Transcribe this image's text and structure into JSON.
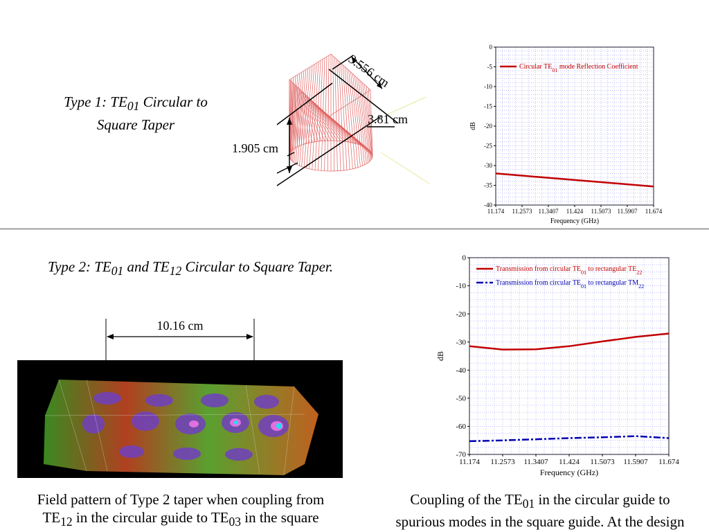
{
  "type1": {
    "title_pre": "Type 1: TE",
    "title_sub": "01",
    "title_post": " Circular to",
    "title_line2": "Square Taper",
    "dim_top": "3.556 cm",
    "dim_width": "3.81 cm",
    "dim_height": "1.905 cm"
  },
  "type2": {
    "title_a": "Type 2: TE",
    "title_sub1": "01",
    "title_b": " and TE",
    "title_sub2": "12",
    "title_c": " Circular to Square Taper.",
    "dim_length": "10.16 cm"
  },
  "caption_left": {
    "l1": "Field pattern of Type 2 taper when coupling from",
    "l2a": "TE",
    "l2sub1": "12",
    "l2b": " in the circular guide to TE",
    "l2sub2": "03",
    "l2c": " in the square"
  },
  "caption_right": {
    "l1a": "Coupling of the TE",
    "l1sub": "01",
    "l1b": " in the circular guide to",
    "l2": "spurious modes in the square guide. At the design"
  },
  "colors": {
    "red": "#c00000",
    "blue": "#0000b0",
    "grid": "#7f7fff"
  },
  "chart_data": [
    {
      "type": "line",
      "ylabel": "dB",
      "xlabel": "Frequency (GHz)",
      "x_ticks": [
        "11.174",
        "11.2573",
        "11.3407",
        "11.424",
        "11.5073",
        "11.5907",
        "11.674"
      ],
      "y_ticks": [
        "0",
        "-5",
        "-10",
        "-15",
        "-20",
        "-25",
        "-30",
        "-35",
        "-40"
      ],
      "xlim": [
        11.174,
        11.674
      ],
      "ylim": [
        -40,
        0
      ],
      "grid": true,
      "legend_position": "top-left",
      "series": [
        {
          "name_a": "Circular TE",
          "name_sub": "01",
          "name_b": " mode Reflection Coefficient",
          "x": [
            11.174,
            11.674
          ],
          "y": [
            -32.0,
            -35.3
          ]
        }
      ]
    },
    {
      "type": "line",
      "ylabel": "dB",
      "xlabel": "Frequency (GHz)",
      "x_ticks": [
        "11.174",
        "11.2573",
        "11.3407",
        "11.424",
        "11.5073",
        "11.5907",
        "11.674"
      ],
      "y_ticks": [
        "0",
        "-10",
        "-20",
        "-30",
        "-40",
        "-50",
        "-60",
        "-70"
      ],
      "xlim": [
        11.174,
        11.674
      ],
      "ylim": [
        -70,
        0
      ],
      "grid": true,
      "legend_position": "top-left",
      "series": [
        {
          "name_a": "Transmission from circular TE",
          "name_sub1": "01",
          "name_b": " to rectangular TE",
          "name_sub2": "22",
          "x": [
            11.174,
            11.2573,
            11.3407,
            11.424,
            11.5073,
            11.5907,
            11.674
          ],
          "y": [
            -31.5,
            -32.7,
            -32.6,
            -31.5,
            -29.8,
            -28.2,
            -27.0
          ]
        },
        {
          "name_a": "Transmission from circular TE",
          "name_sub1": "01",
          "name_b": " to rectangular TM",
          "name_sub2": "22",
          "x": [
            11.174,
            11.2573,
            11.3407,
            11.424,
            11.5073,
            11.5907,
            11.674
          ],
          "y": [
            -65.3,
            -65.0,
            -64.6,
            -64.2,
            -63.9,
            -63.5,
            -64.2
          ]
        }
      ]
    }
  ]
}
